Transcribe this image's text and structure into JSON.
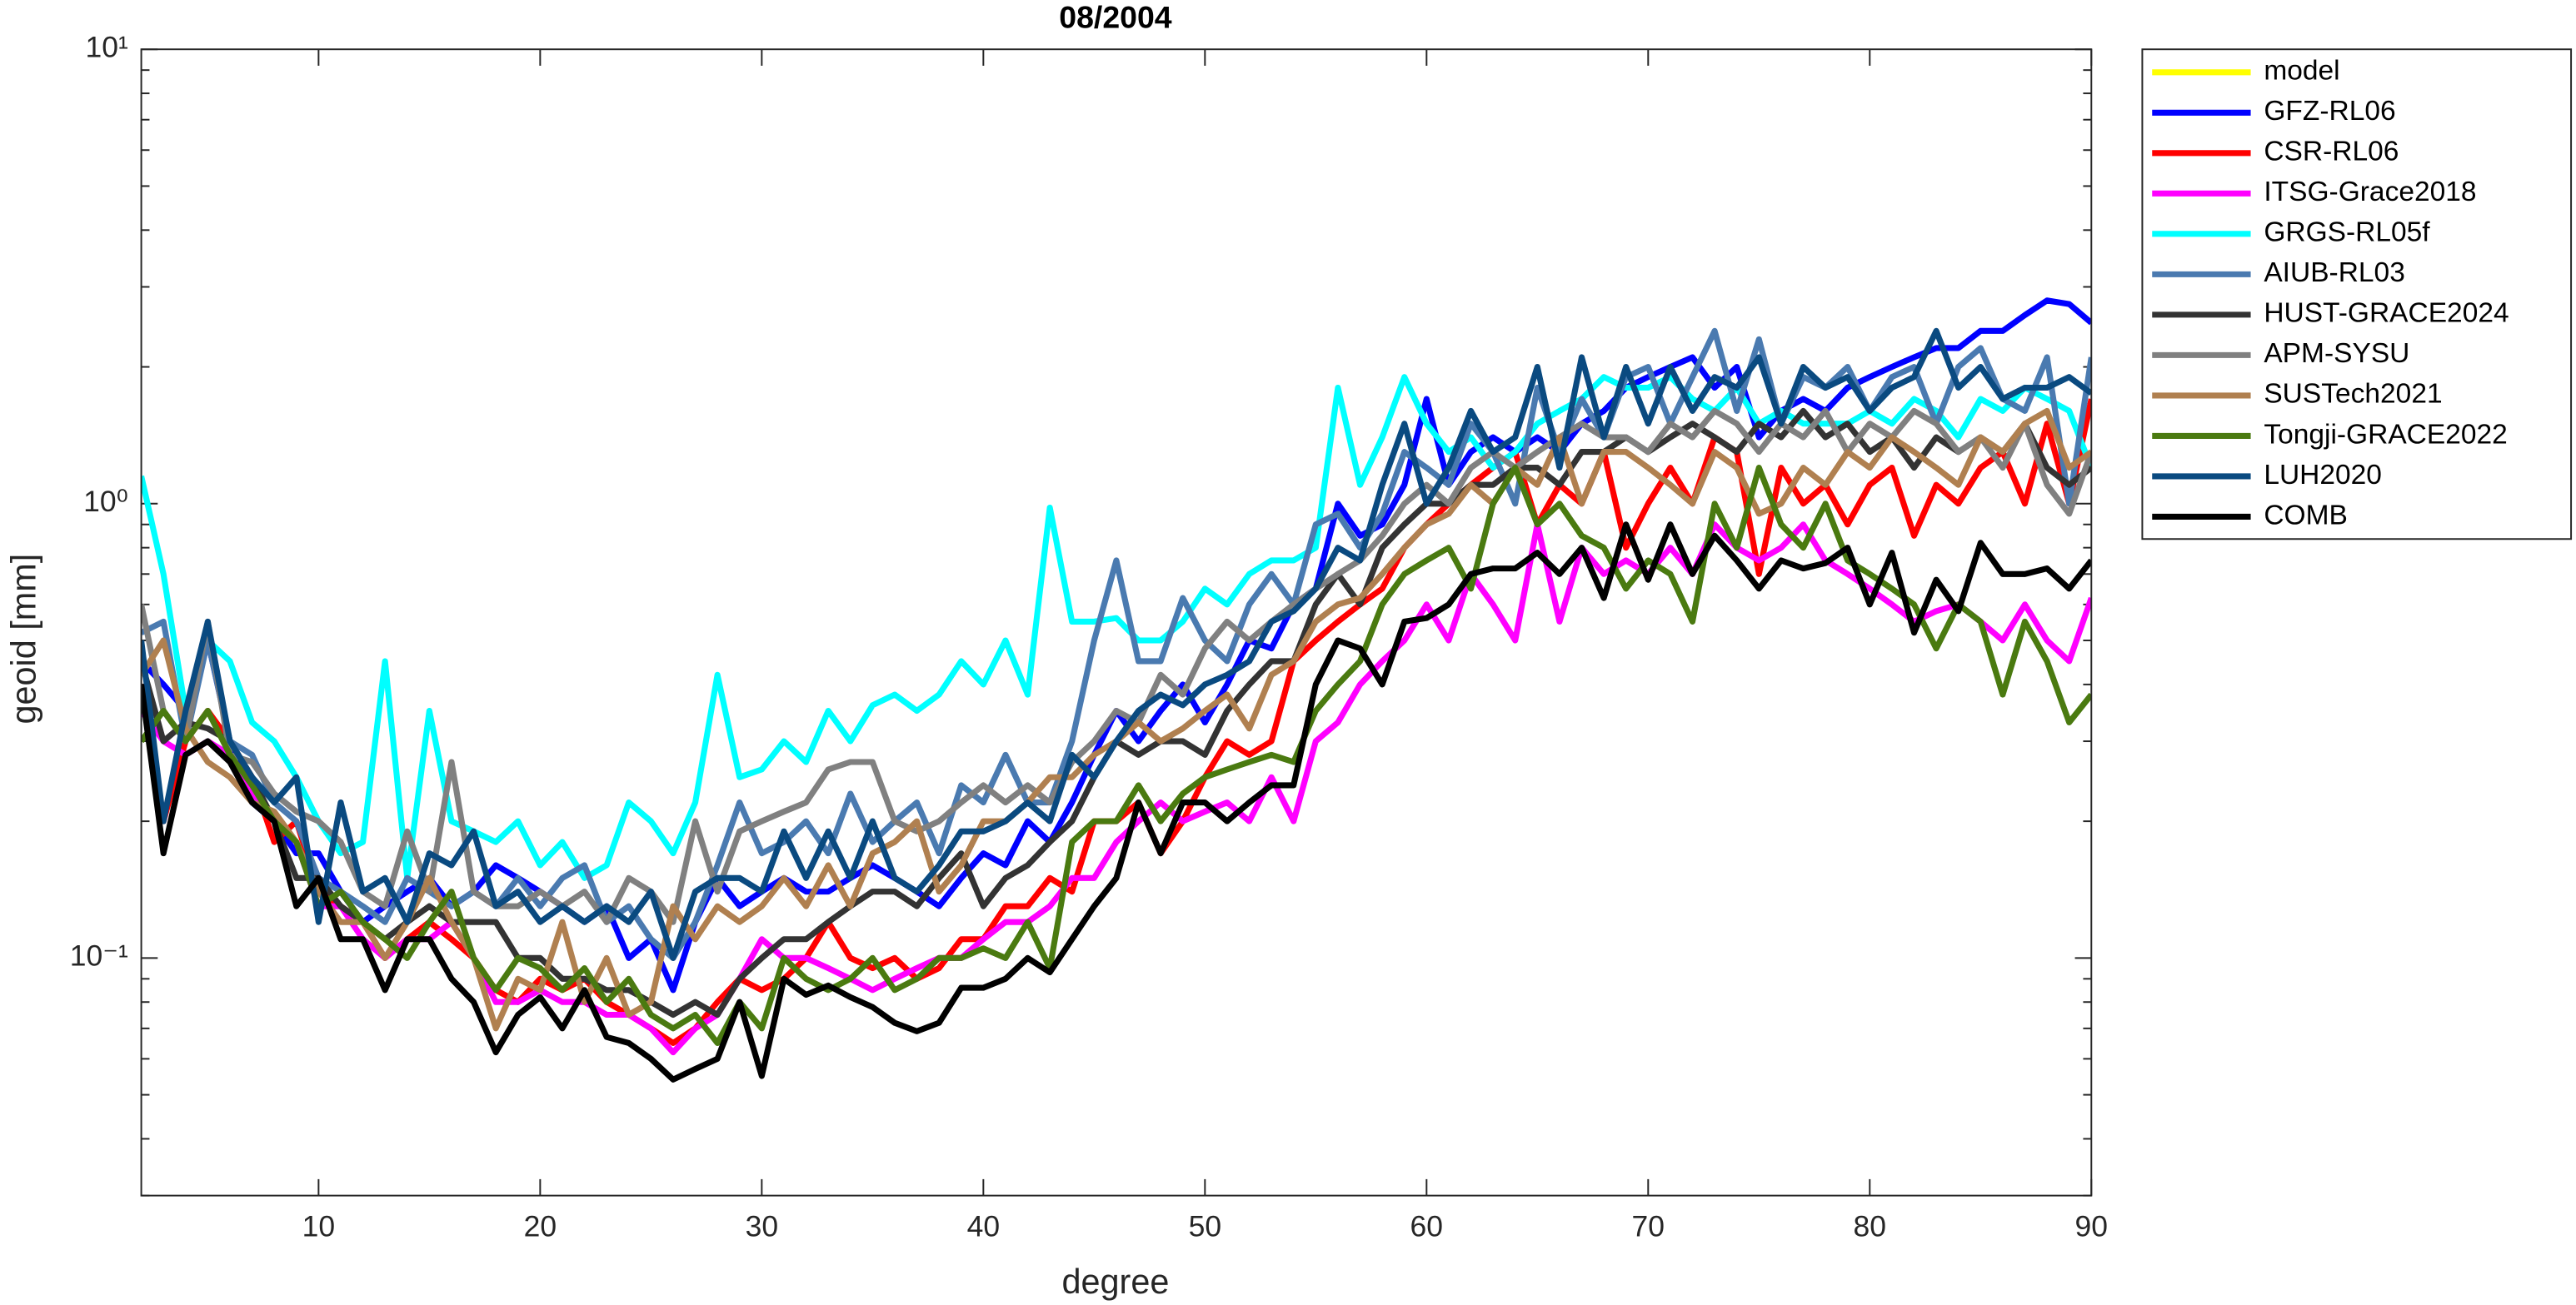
{
  "chart_data": {
    "type": "line",
    "title": "08/2004",
    "xlabel": "degree",
    "ylabel": "geoid [mm]",
    "log_y": true,
    "grid": false,
    "legend": "outside-right",
    "xlim": [
      2,
      90
    ],
    "xticks": [
      10,
      20,
      30,
      40,
      50,
      60,
      70,
      80,
      90
    ],
    "ylim": [
      0.03,
      10
    ],
    "yticks": [
      {
        "value": 0.1,
        "label": "10⁻¹"
      },
      {
        "value": 1,
        "label": "10⁰"
      },
      {
        "value": 10,
        "label": "10¹"
      }
    ],
    "x": [
      2,
      3,
      4,
      5,
      6,
      7,
      8,
      9,
      10,
      11,
      12,
      13,
      14,
      15,
      16,
      17,
      18,
      19,
      20,
      21,
      22,
      23,
      24,
      25,
      26,
      27,
      28,
      29,
      30,
      31,
      32,
      33,
      34,
      35,
      36,
      37,
      38,
      39,
      40,
      41,
      42,
      43,
      44,
      45,
      46,
      47,
      48,
      49,
      50,
      51,
      52,
      53,
      54,
      55,
      56,
      57,
      58,
      59,
      60,
      61,
      62,
      63,
      64,
      65,
      66,
      67,
      68,
      69,
      70,
      71,
      72,
      73,
      74,
      75,
      76,
      77,
      78,
      79,
      80,
      81,
      82,
      83,
      84,
      85,
      86,
      87,
      88,
      89,
      90
    ],
    "series": [
      {
        "name": "model",
        "color": "#ffff00",
        "values": [
          null,
          null,
          null,
          null,
          null,
          null,
          null,
          null,
          null,
          null,
          null,
          null,
          null,
          null,
          null,
          null,
          null,
          null,
          null,
          null,
          null,
          null,
          null,
          null,
          null,
          null,
          null,
          null,
          null,
          null,
          null,
          null,
          null,
          null,
          null,
          null,
          null,
          null,
          null,
          null,
          null,
          null,
          null,
          null,
          null,
          null,
          null,
          null,
          null,
          null,
          null,
          null,
          null,
          null,
          null,
          null,
          null,
          null,
          null,
          null,
          null,
          null,
          null,
          null,
          null,
          null,
          null,
          null,
          null,
          null,
          null,
          null,
          null,
          null,
          null,
          null,
          null,
          null,
          null,
          null,
          null,
          null,
          null,
          null,
          null,
          null,
          null,
          null,
          null
        ]
      },
      {
        "name": "GFZ-RL06",
        "color": "#0000ff",
        "values": [
          0.45,
          0.4,
          0.35,
          0.5,
          0.3,
          0.22,
          0.2,
          0.17,
          0.17,
          0.14,
          0.12,
          0.13,
          0.14,
          0.15,
          0.13,
          0.14,
          0.16,
          0.15,
          0.14,
          0.13,
          0.12,
          0.13,
          0.1,
          0.11,
          0.085,
          0.12,
          0.15,
          0.13,
          0.14,
          0.15,
          0.14,
          0.14,
          0.15,
          0.16,
          0.15,
          0.14,
          0.13,
          0.15,
          0.17,
          0.16,
          0.2,
          0.18,
          0.22,
          0.28,
          0.35,
          0.3,
          0.35,
          0.4,
          0.33,
          0.4,
          0.5,
          0.48,
          0.6,
          0.65,
          1.0,
          0.85,
          0.9,
          1.1,
          1.7,
          1.1,
          1.3,
          1.4,
          1.3,
          1.4,
          1.3,
          1.5,
          1.6,
          1.8,
          1.9,
          2.0,
          2.1,
          1.8,
          2.0,
          1.4,
          1.6,
          1.7,
          1.6,
          1.8,
          1.9,
          2.0,
          2.1,
          2.2,
          2.2,
          2.4,
          2.4,
          2.6,
          2.8,
          2.75,
          2.5
        ]
      },
      {
        "name": "CSR-RL06",
        "color": "#ff0000",
        "values": [
          0.4,
          0.2,
          0.3,
          0.35,
          0.3,
          0.25,
          0.18,
          0.2,
          0.14,
          0.13,
          0.12,
          0.1,
          0.11,
          0.12,
          0.11,
          0.1,
          0.085,
          0.08,
          0.09,
          0.085,
          0.09,
          0.08,
          0.075,
          0.07,
          0.065,
          0.07,
          0.08,
          0.09,
          0.085,
          0.09,
          0.1,
          0.12,
          0.1,
          0.095,
          0.1,
          0.09,
          0.095,
          0.11,
          0.11,
          0.13,
          0.13,
          0.15,
          0.14,
          0.2,
          0.2,
          0.22,
          0.17,
          0.2,
          0.25,
          0.3,
          0.28,
          0.3,
          0.45,
          0.5,
          0.55,
          0.6,
          0.65,
          0.8,
          0.9,
          1.0,
          1.1,
          1.2,
          1.3,
          0.9,
          1.1,
          1.0,
          1.3,
          0.8,
          1.0,
          1.2,
          1.0,
          1.4,
          1.3,
          0.7,
          1.2,
          1.0,
          1.1,
          0.9,
          1.1,
          1.2,
          0.85,
          1.1,
          1.0,
          1.2,
          1.3,
          1.0,
          1.5,
          1.0,
          1.7
        ]
      },
      {
        "name": "ITSG-Grace2018",
        "color": "#ff00ff",
        "values": [
          0.35,
          0.3,
          0.28,
          0.3,
          0.28,
          0.23,
          0.2,
          0.18,
          0.13,
          0.13,
          0.11,
          0.1,
          0.11,
          0.11,
          0.12,
          0.1,
          0.08,
          0.08,
          0.085,
          0.08,
          0.08,
          0.075,
          0.075,
          0.07,
          0.062,
          0.07,
          0.075,
          0.09,
          0.11,
          0.1,
          0.1,
          0.095,
          0.09,
          0.085,
          0.09,
          0.095,
          0.1,
          0.1,
          0.11,
          0.12,
          0.12,
          0.13,
          0.15,
          0.15,
          0.18,
          0.2,
          0.22,
          0.2,
          0.21,
          0.22,
          0.2,
          0.25,
          0.2,
          0.3,
          0.33,
          0.4,
          0.45,
          0.5,
          0.6,
          0.5,
          0.7,
          0.6,
          0.5,
          0.9,
          0.55,
          0.8,
          0.7,
          0.75,
          0.7,
          0.8,
          0.7,
          0.9,
          0.8,
          0.75,
          0.8,
          0.9,
          0.75,
          0.7,
          0.65,
          0.6,
          0.55,
          0.58,
          0.6,
          0.55,
          0.5,
          0.6,
          0.5,
          0.45,
          0.62
        ]
      },
      {
        "name": "GRGS-RL05f",
        "color": "#00ffff",
        "values": [
          1.15,
          0.7,
          0.35,
          0.5,
          0.45,
          0.33,
          0.3,
          0.25,
          0.2,
          0.17,
          0.18,
          0.45,
          0.15,
          0.35,
          0.2,
          0.19,
          0.18,
          0.2,
          0.16,
          0.18,
          0.15,
          0.16,
          0.22,
          0.2,
          0.17,
          0.22,
          0.42,
          0.25,
          0.26,
          0.3,
          0.27,
          0.35,
          0.3,
          0.36,
          0.38,
          0.35,
          0.38,
          0.45,
          0.4,
          0.5,
          0.38,
          0.98,
          0.55,
          0.55,
          0.56,
          0.5,
          0.5,
          0.55,
          0.65,
          0.6,
          0.7,
          0.75,
          0.75,
          0.8,
          1.8,
          1.1,
          1.4,
          1.9,
          1.5,
          1.3,
          1.4,
          1.2,
          1.3,
          1.5,
          1.6,
          1.7,
          1.9,
          1.8,
          1.8,
          1.9,
          1.7,
          1.6,
          1.8,
          1.5,
          1.6,
          1.5,
          1.5,
          1.5,
          1.6,
          1.5,
          1.7,
          1.6,
          1.4,
          1.7,
          1.6,
          1.8,
          1.7,
          1.6,
          1.2
        ]
      },
      {
        "name": "AIUB-RL03",
        "color": "#4a7ab0",
        "values": [
          0.52,
          0.55,
          0.3,
          0.5,
          0.3,
          0.28,
          0.22,
          0.2,
          0.15,
          0.14,
          0.13,
          0.12,
          0.15,
          0.14,
          0.13,
          0.14,
          0.13,
          0.15,
          0.13,
          0.15,
          0.16,
          0.12,
          0.13,
          0.11,
          0.1,
          0.12,
          0.16,
          0.22,
          0.17,
          0.18,
          0.2,
          0.17,
          0.23,
          0.18,
          0.2,
          0.22,
          0.17,
          0.24,
          0.22,
          0.28,
          0.22,
          0.22,
          0.3,
          0.5,
          0.75,
          0.45,
          0.45,
          0.62,
          0.5,
          0.45,
          0.6,
          0.7,
          0.6,
          0.9,
          0.95,
          0.8,
          0.95,
          1.3,
          1.2,
          1.1,
          1.5,
          1.3,
          1.0,
          1.8,
          1.3,
          1.7,
          1.4,
          1.9,
          2.0,
          1.5,
          1.9,
          2.4,
          1.6,
          2.3,
          1.5,
          1.9,
          1.8,
          2.0,
          1.6,
          1.9,
          2.0,
          1.5,
          2.0,
          2.2,
          1.7,
          1.6,
          2.1,
          1.0,
          2.1
        ]
      },
      {
        "name": "HUST-GRACE2024",
        "color": "#333333",
        "values": [
          0.45,
          0.3,
          0.33,
          0.32,
          0.3,
          0.25,
          0.2,
          0.15,
          0.15,
          0.13,
          0.12,
          0.11,
          0.12,
          0.13,
          0.12,
          0.12,
          0.12,
          0.1,
          0.1,
          0.09,
          0.09,
          0.085,
          0.085,
          0.08,
          0.075,
          0.08,
          0.075,
          0.09,
          0.1,
          0.11,
          0.11,
          0.12,
          0.13,
          0.14,
          0.14,
          0.13,
          0.15,
          0.17,
          0.13,
          0.15,
          0.16,
          0.18,
          0.2,
          0.25,
          0.3,
          0.28,
          0.3,
          0.3,
          0.28,
          0.35,
          0.4,
          0.45,
          0.45,
          0.6,
          0.7,
          0.6,
          0.8,
          0.9,
          1.0,
          1.0,
          1.1,
          1.1,
          1.2,
          1.2,
          1.1,
          1.3,
          1.3,
          1.4,
          1.3,
          1.4,
          1.5,
          1.4,
          1.3,
          1.5,
          1.4,
          1.6,
          1.4,
          1.5,
          1.3,
          1.4,
          1.2,
          1.4,
          1.3,
          1.4,
          1.3,
          1.5,
          1.2,
          1.1,
          1.2
        ]
      },
      {
        "name": "APM-SYSU",
        "color": "#808080",
        "values": [
          0.6,
          0.35,
          0.3,
          0.55,
          0.28,
          0.27,
          0.23,
          0.21,
          0.2,
          0.18,
          0.14,
          0.13,
          0.19,
          0.14,
          0.27,
          0.14,
          0.13,
          0.13,
          0.14,
          0.13,
          0.14,
          0.12,
          0.15,
          0.14,
          0.12,
          0.2,
          0.14,
          0.19,
          0.2,
          0.21,
          0.22,
          0.26,
          0.27,
          0.27,
          0.2,
          0.19,
          0.2,
          0.22,
          0.24,
          0.22,
          0.24,
          0.22,
          0.27,
          0.3,
          0.35,
          0.33,
          0.42,
          0.38,
          0.48,
          0.55,
          0.5,
          0.55,
          0.6,
          0.65,
          0.7,
          0.75,
          0.85,
          1.0,
          1.1,
          1.0,
          1.2,
          1.3,
          1.2,
          1.3,
          1.4,
          1.5,
          1.4,
          1.4,
          1.3,
          1.5,
          1.4,
          1.6,
          1.5,
          1.3,
          1.5,
          1.4,
          1.6,
          1.3,
          1.5,
          1.4,
          1.6,
          1.5,
          1.3,
          1.4,
          1.2,
          1.5,
          1.1,
          0.95,
          1.3
        ]
      },
      {
        "name": "SUSTech2021",
        "color": "#b08050",
        "values": [
          0.42,
          0.5,
          0.32,
          0.27,
          0.25,
          0.22,
          0.21,
          0.18,
          0.14,
          0.12,
          0.12,
          0.1,
          0.12,
          0.15,
          0.12,
          0.1,
          0.07,
          0.09,
          0.085,
          0.12,
          0.08,
          0.1,
          0.075,
          0.08,
          0.13,
          0.11,
          0.13,
          0.12,
          0.13,
          0.15,
          0.13,
          0.16,
          0.13,
          0.17,
          0.18,
          0.2,
          0.14,
          0.16,
          0.2,
          0.2,
          0.22,
          0.25,
          0.25,
          0.28,
          0.3,
          0.33,
          0.3,
          0.32,
          0.35,
          0.38,
          0.32,
          0.42,
          0.45,
          0.55,
          0.6,
          0.62,
          0.7,
          0.8,
          0.9,
          0.95,
          1.1,
          1.0,
          1.2,
          1.1,
          1.4,
          1.0,
          1.3,
          1.3,
          1.2,
          1.1,
          1.0,
          1.3,
          1.2,
          0.95,
          1.0,
          1.2,
          1.1,
          1.3,
          1.2,
          1.4,
          1.3,
          1.2,
          1.1,
          1.4,
          1.3,
          1.5,
          1.6,
          1.2,
          1.3
        ]
      },
      {
        "name": "Tongji-GRACE2022",
        "color": "#4a7a10",
        "values": [
          0.3,
          0.35,
          0.3,
          0.35,
          0.28,
          0.24,
          0.2,
          0.18,
          0.13,
          0.14,
          0.12,
          0.11,
          0.1,
          0.12,
          0.14,
          0.1,
          0.085,
          0.1,
          0.095,
          0.085,
          0.095,
          0.08,
          0.09,
          0.075,
          0.07,
          0.075,
          0.065,
          0.08,
          0.07,
          0.1,
          0.09,
          0.085,
          0.09,
          0.1,
          0.085,
          0.09,
          0.1,
          0.1,
          0.105,
          0.1,
          0.12,
          0.095,
          0.18,
          0.2,
          0.2,
          0.24,
          0.2,
          0.23,
          0.25,
          0.26,
          0.27,
          0.28,
          0.27,
          0.35,
          0.4,
          0.45,
          0.6,
          0.7,
          0.75,
          0.8,
          0.65,
          1.0,
          1.2,
          0.9,
          1.0,
          0.85,
          0.8,
          0.65,
          0.75,
          0.7,
          0.55,
          1.0,
          0.8,
          1.2,
          0.9,
          0.8,
          1.0,
          0.75,
          0.7,
          0.65,
          0.6,
          0.48,
          0.6,
          0.55,
          0.38,
          0.55,
          0.45,
          0.33,
          0.38
        ]
      },
      {
        "name": "LUH2020",
        "color": "#0a4a80",
        "values": [
          0.5,
          0.2,
          0.35,
          0.55,
          0.3,
          0.25,
          0.22,
          0.25,
          0.12,
          0.22,
          0.14,
          0.15,
          0.12,
          0.17,
          0.16,
          0.19,
          0.13,
          0.14,
          0.12,
          0.13,
          0.12,
          0.13,
          0.12,
          0.14,
          0.1,
          0.14,
          0.15,
          0.15,
          0.14,
          0.19,
          0.15,
          0.19,
          0.15,
          0.2,
          0.15,
          0.14,
          0.16,
          0.19,
          0.19,
          0.2,
          0.22,
          0.2,
          0.28,
          0.25,
          0.3,
          0.35,
          0.38,
          0.36,
          0.4,
          0.42,
          0.45,
          0.55,
          0.58,
          0.65,
          0.8,
          0.75,
          1.1,
          1.5,
          1.0,
          1.2,
          1.6,
          1.3,
          1.4,
          2.0,
          1.2,
          2.1,
          1.4,
          2.0,
          1.5,
          2.0,
          1.6,
          1.9,
          1.8,
          2.1,
          1.5,
          2.0,
          1.8,
          1.9,
          1.6,
          1.8,
          1.9,
          2.4,
          1.8,
          2.0,
          1.7,
          1.8,
          1.8,
          1.9,
          1.75
        ]
      },
      {
        "name": "COMB",
        "color": "#000000",
        "values": [
          0.4,
          0.17,
          0.28,
          0.3,
          0.27,
          0.22,
          0.2,
          0.13,
          0.15,
          0.11,
          0.11,
          0.085,
          0.11,
          0.11,
          0.09,
          0.08,
          0.062,
          0.075,
          0.082,
          0.07,
          0.085,
          0.067,
          0.065,
          0.06,
          0.054,
          0.057,
          0.06,
          0.08,
          0.055,
          0.09,
          0.083,
          0.087,
          0.082,
          0.078,
          0.072,
          0.069,
          0.072,
          0.086,
          0.086,
          0.09,
          0.1,
          0.093,
          0.11,
          0.13,
          0.15,
          0.22,
          0.17,
          0.22,
          0.22,
          0.2,
          0.22,
          0.24,
          0.24,
          0.4,
          0.5,
          0.48,
          0.4,
          0.55,
          0.56,
          0.6,
          0.7,
          0.72,
          0.72,
          0.78,
          0.7,
          0.8,
          0.62,
          0.9,
          0.68,
          0.9,
          0.7,
          0.85,
          0.75,
          0.65,
          0.75,
          0.72,
          0.74,
          0.8,
          0.6,
          0.78,
          0.52,
          0.68,
          0.58,
          0.82,
          0.7,
          0.7,
          0.72,
          0.65,
          0.75
        ]
      }
    ]
  }
}
